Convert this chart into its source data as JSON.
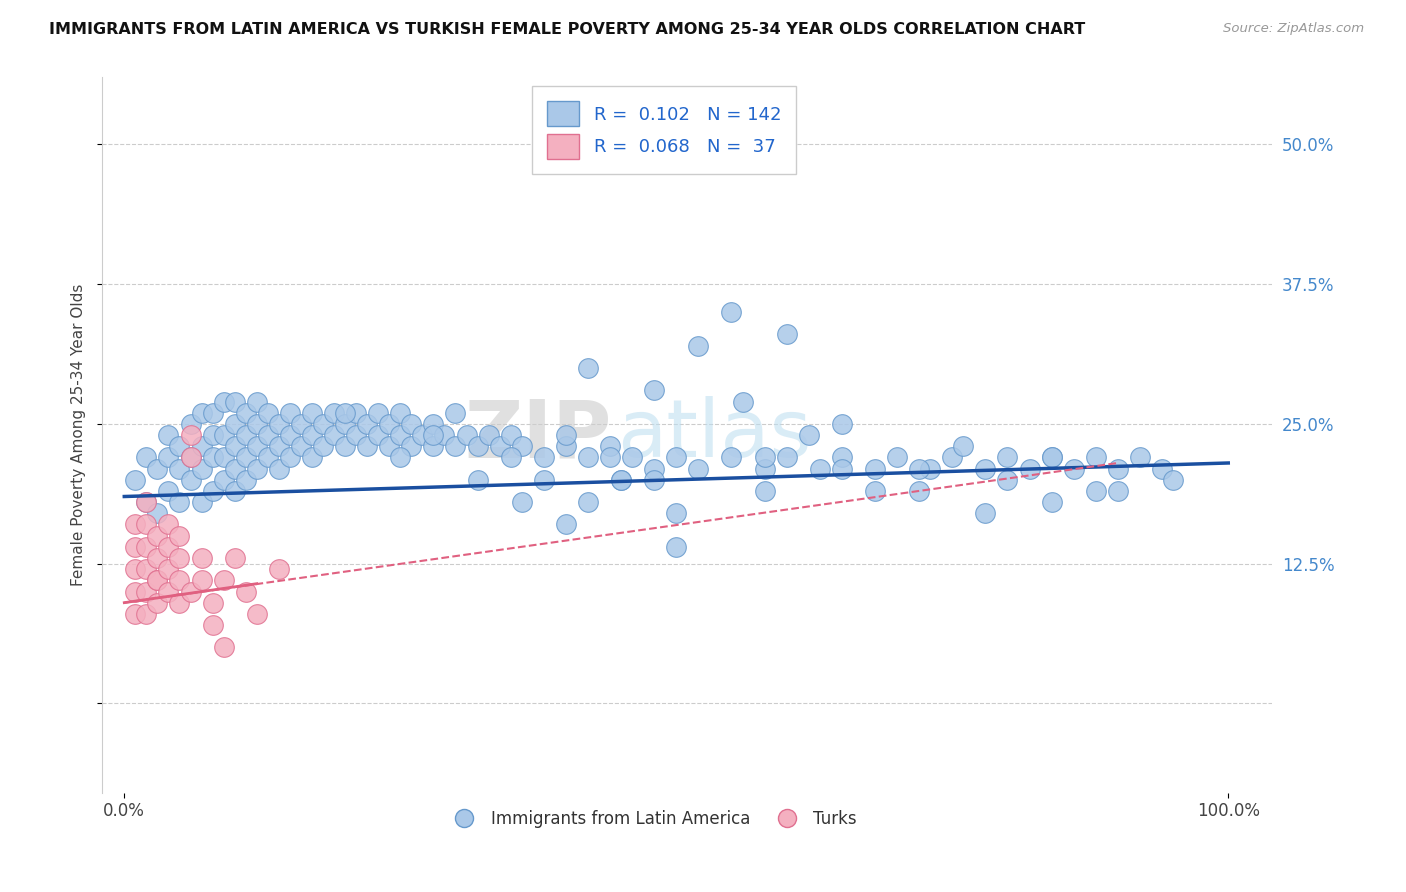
{
  "title": "IMMIGRANTS FROM LATIN AMERICA VS TURKISH FEMALE POVERTY AMONG 25-34 YEAR OLDS CORRELATION CHART",
  "source": "Source: ZipAtlas.com",
  "ylabel": "Female Poverty Among 25-34 Year Olds",
  "watermark_zip": "ZIP",
  "watermark_atlas": "atlas",
  "xlim": [
    -0.02,
    1.04
  ],
  "ylim": [
    -0.08,
    0.56
  ],
  "yticks": [
    0.0,
    0.125,
    0.25,
    0.375,
    0.5
  ],
  "ytick_labels": [
    "",
    "12.5%",
    "25.0%",
    "37.5%",
    "50.0%"
  ],
  "xticks": [
    0.0,
    1.0
  ],
  "xtick_labels": [
    "0.0%",
    "100.0%"
  ],
  "latin_R": 0.102,
  "latin_N": 142,
  "turk_R": 0.068,
  "turk_N": 37,
  "blue_scatter_color": "#aac8e8",
  "blue_edge_color": "#6699cc",
  "pink_scatter_color": "#f4b0c0",
  "pink_edge_color": "#e07090",
  "blue_line_color": "#1a4fa0",
  "pink_line_color": "#e06080",
  "legend_label_blue": "Immigrants from Latin America",
  "legend_label_pink": "Turks",
  "latin_scatter_x": [
    0.01,
    0.02,
    0.02,
    0.03,
    0.03,
    0.04,
    0.04,
    0.04,
    0.05,
    0.05,
    0.05,
    0.06,
    0.06,
    0.06,
    0.07,
    0.07,
    0.07,
    0.07,
    0.08,
    0.08,
    0.08,
    0.08,
    0.09,
    0.09,
    0.09,
    0.09,
    0.1,
    0.1,
    0.1,
    0.1,
    0.1,
    0.11,
    0.11,
    0.11,
    0.11,
    0.12,
    0.12,
    0.12,
    0.12,
    0.13,
    0.13,
    0.13,
    0.14,
    0.14,
    0.14,
    0.15,
    0.15,
    0.15,
    0.16,
    0.16,
    0.17,
    0.17,
    0.17,
    0.18,
    0.18,
    0.19,
    0.19,
    0.2,
    0.2,
    0.21,
    0.21,
    0.22,
    0.22,
    0.23,
    0.23,
    0.24,
    0.24,
    0.25,
    0.25,
    0.26,
    0.26,
    0.27,
    0.28,
    0.28,
    0.29,
    0.3,
    0.31,
    0.32,
    0.33,
    0.34,
    0.35,
    0.36,
    0.38,
    0.4,
    0.42,
    0.44,
    0.46,
    0.48,
    0.5,
    0.52,
    0.55,
    0.58,
    0.6,
    0.63,
    0.65,
    0.68,
    0.7,
    0.73,
    0.75,
    0.78,
    0.8,
    0.82,
    0.84,
    0.86,
    0.88,
    0.9,
    0.92,
    0.94,
    0.55,
    0.6,
    0.42,
    0.48,
    0.52,
    0.56,
    0.4,
    0.65,
    0.5,
    0.45,
    0.58,
    0.62,
    0.68,
    0.72,
    0.76,
    0.8,
    0.84,
    0.88,
    0.5,
    0.58,
    0.65,
    0.72,
    0.78,
    0.84,
    0.9,
    0.95,
    0.3,
    0.35,
    0.38,
    0.42,
    0.45,
    0.2,
    0.25,
    0.28,
    0.32,
    0.36,
    0.4,
    0.44,
    0.48
  ],
  "latin_scatter_y": [
    0.2,
    0.18,
    0.22,
    0.17,
    0.21,
    0.19,
    0.22,
    0.24,
    0.18,
    0.21,
    0.23,
    0.2,
    0.22,
    0.25,
    0.18,
    0.21,
    0.23,
    0.26,
    0.19,
    0.22,
    0.24,
    0.26,
    0.2,
    0.22,
    0.24,
    0.27,
    0.19,
    0.21,
    0.23,
    0.25,
    0.27,
    0.2,
    0.22,
    0.24,
    0.26,
    0.21,
    0.23,
    0.25,
    0.27,
    0.22,
    0.24,
    0.26,
    0.21,
    0.23,
    0.25,
    0.22,
    0.24,
    0.26,
    0.23,
    0.25,
    0.22,
    0.24,
    0.26,
    0.23,
    0.25,
    0.24,
    0.26,
    0.23,
    0.25,
    0.24,
    0.26,
    0.23,
    0.25,
    0.24,
    0.26,
    0.23,
    0.25,
    0.24,
    0.26,
    0.23,
    0.25,
    0.24,
    0.23,
    0.25,
    0.24,
    0.23,
    0.24,
    0.23,
    0.24,
    0.23,
    0.24,
    0.23,
    0.22,
    0.23,
    0.22,
    0.23,
    0.22,
    0.21,
    0.22,
    0.21,
    0.22,
    0.21,
    0.22,
    0.21,
    0.22,
    0.21,
    0.22,
    0.21,
    0.22,
    0.21,
    0.22,
    0.21,
    0.22,
    0.21,
    0.22,
    0.21,
    0.22,
    0.21,
    0.35,
    0.33,
    0.3,
    0.28,
    0.32,
    0.27,
    0.24,
    0.25,
    0.14,
    0.2,
    0.22,
    0.24,
    0.19,
    0.21,
    0.23,
    0.2,
    0.22,
    0.19,
    0.17,
    0.19,
    0.21,
    0.19,
    0.17,
    0.18,
    0.19,
    0.2,
    0.26,
    0.22,
    0.2,
    0.18,
    0.2,
    0.26,
    0.22,
    0.24,
    0.2,
    0.18,
    0.16,
    0.22,
    0.2
  ],
  "turk_scatter_x": [
    0.01,
    0.01,
    0.01,
    0.01,
    0.01,
    0.02,
    0.02,
    0.02,
    0.02,
    0.02,
    0.02,
    0.03,
    0.03,
    0.03,
    0.03,
    0.03,
    0.04,
    0.04,
    0.04,
    0.04,
    0.05,
    0.05,
    0.05,
    0.05,
    0.06,
    0.06,
    0.06,
    0.07,
    0.07,
    0.08,
    0.08,
    0.09,
    0.09,
    0.1,
    0.11,
    0.12,
    0.14
  ],
  "turk_scatter_y": [
    0.12,
    0.1,
    0.08,
    0.14,
    0.16,
    0.1,
    0.12,
    0.14,
    0.08,
    0.16,
    0.18,
    0.11,
    0.13,
    0.09,
    0.15,
    0.11,
    0.12,
    0.1,
    0.14,
    0.16,
    0.11,
    0.13,
    0.09,
    0.15,
    0.22,
    0.24,
    0.1,
    0.11,
    0.13,
    0.07,
    0.09,
    0.11,
    0.05,
    0.13,
    0.1,
    0.08,
    0.12
  ],
  "blue_line_x0": 0.0,
  "blue_line_y0": 0.185,
  "blue_line_x1": 1.0,
  "blue_line_y1": 0.215,
  "pink_line_x0": 0.0,
  "pink_line_y0": 0.09,
  "pink_line_x1": 0.9,
  "pink_line_y1": 0.215
}
